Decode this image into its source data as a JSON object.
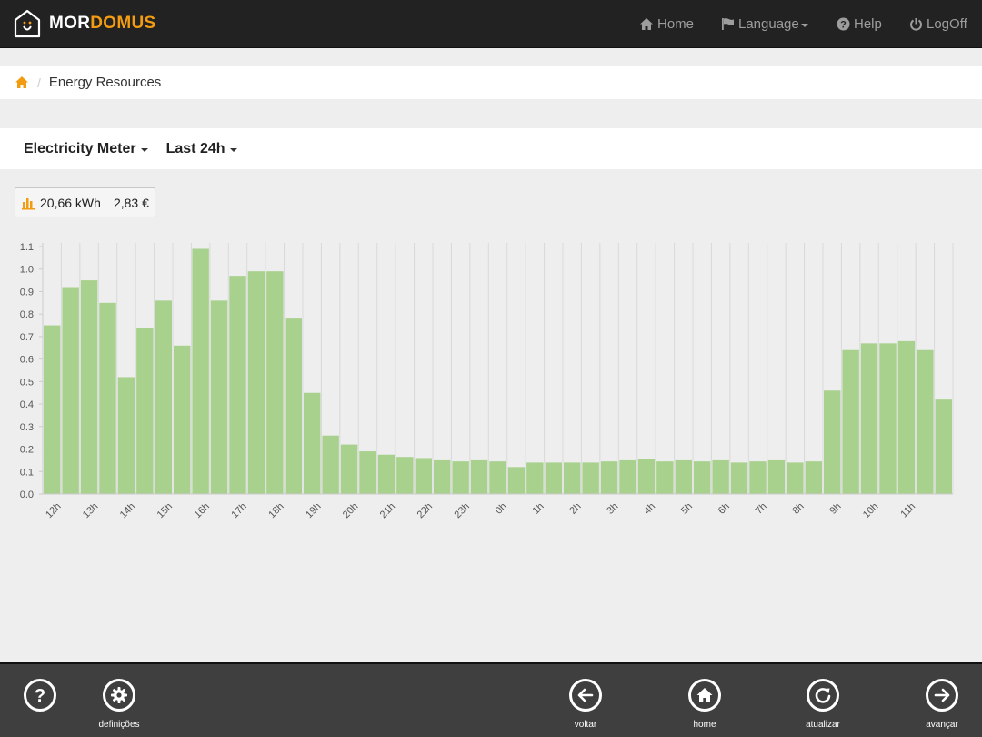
{
  "brand": {
    "part1": "MOR",
    "part2": "DOMUS",
    "accent": "#f39c12"
  },
  "nav": {
    "home": {
      "label": "Home",
      "icon": "home-icon"
    },
    "language": {
      "label": "Language",
      "icon": "flag-icon"
    },
    "help": {
      "label": "Help",
      "icon": "question-circle-icon"
    },
    "logoff": {
      "label": "LogOff",
      "icon": "power-icon"
    }
  },
  "breadcrumb": {
    "home_icon": "home-icon",
    "separator": "/",
    "current": "Energy Resources"
  },
  "toolbar": {
    "meter": "Electricity Meter",
    "period": "Last 24h"
  },
  "summary": {
    "energy": "20,66 kWh",
    "cost": "2,83 €",
    "icon": "bar-chart-icon"
  },
  "chart_data": {
    "type": "bar",
    "bar_color": "#a9d18e",
    "ylim": [
      0,
      1.1
    ],
    "yticks": [
      "0.0",
      "0.1",
      "0.2",
      "0.3",
      "0.4",
      "0.5",
      "0.6",
      "0.7",
      "0.8",
      "0.9",
      "1.0",
      "1.1"
    ],
    "xticks": [
      "12h",
      "13h",
      "14h",
      "15h",
      "16h",
      "17h",
      "18h",
      "19h",
      "20h",
      "21h",
      "22h",
      "23h",
      "0h",
      "1h",
      "2h",
      "3h",
      "4h",
      "5h",
      "6h",
      "7h",
      "8h",
      "9h",
      "10h",
      "11h"
    ],
    "values": [
      0.75,
      0.92,
      0.95,
      0.85,
      0.52,
      0.74,
      0.86,
      0.66,
      1.09,
      0.86,
      0.97,
      0.99,
      0.99,
      0.78,
      0.45,
      0.26,
      0.22,
      0.19,
      0.175,
      0.165,
      0.16,
      0.15,
      0.145,
      0.15,
      0.145,
      0.12,
      0.14,
      0.14,
      0.14,
      0.14,
      0.145,
      0.15,
      0.155,
      0.145,
      0.15,
      0.145,
      0.15,
      0.14,
      0.145,
      0.15,
      0.14,
      0.145,
      0.46,
      0.64,
      0.67,
      0.67,
      0.68,
      0.64,
      0.42
    ]
  },
  "footer": {
    "help": {
      "label": "",
      "icon": "question-icon"
    },
    "settings": {
      "label": "definições",
      "icon": "gear-icon"
    },
    "back": {
      "label": "voltar",
      "icon": "arrow-left-icon"
    },
    "home": {
      "label": "home",
      "icon": "home-icon"
    },
    "refresh": {
      "label": "atualizar",
      "icon": "refresh-icon"
    },
    "forward": {
      "label": "avançar",
      "icon": "arrow-right-icon"
    }
  }
}
